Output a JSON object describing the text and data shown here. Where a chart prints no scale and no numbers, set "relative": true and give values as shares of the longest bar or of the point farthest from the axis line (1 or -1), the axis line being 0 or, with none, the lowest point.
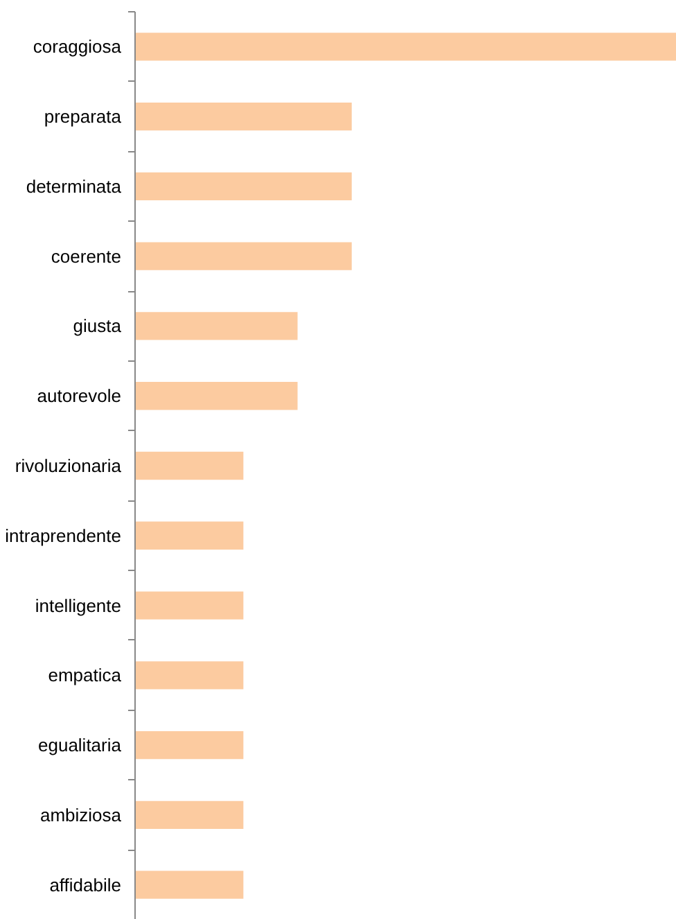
{
  "chart_data": {
    "type": "bar",
    "orientation": "horizontal",
    "relative": true,
    "color": "#fccba0",
    "categories": [
      "coraggiosa",
      "preparata",
      "determinata",
      "coerente",
      "giusta",
      "autorevole",
      "rivoluzionaria",
      "intraprendente",
      "intelligente",
      "empatica",
      "egualitaria",
      "ambiziosa",
      "affidabile"
    ],
    "values": [
      1,
      0.4,
      0.4,
      0.4,
      0.3,
      0.3,
      0.2,
      0.2,
      0.2,
      0.2,
      0.2,
      0.2,
      0.2
    ],
    "grid": false
  }
}
